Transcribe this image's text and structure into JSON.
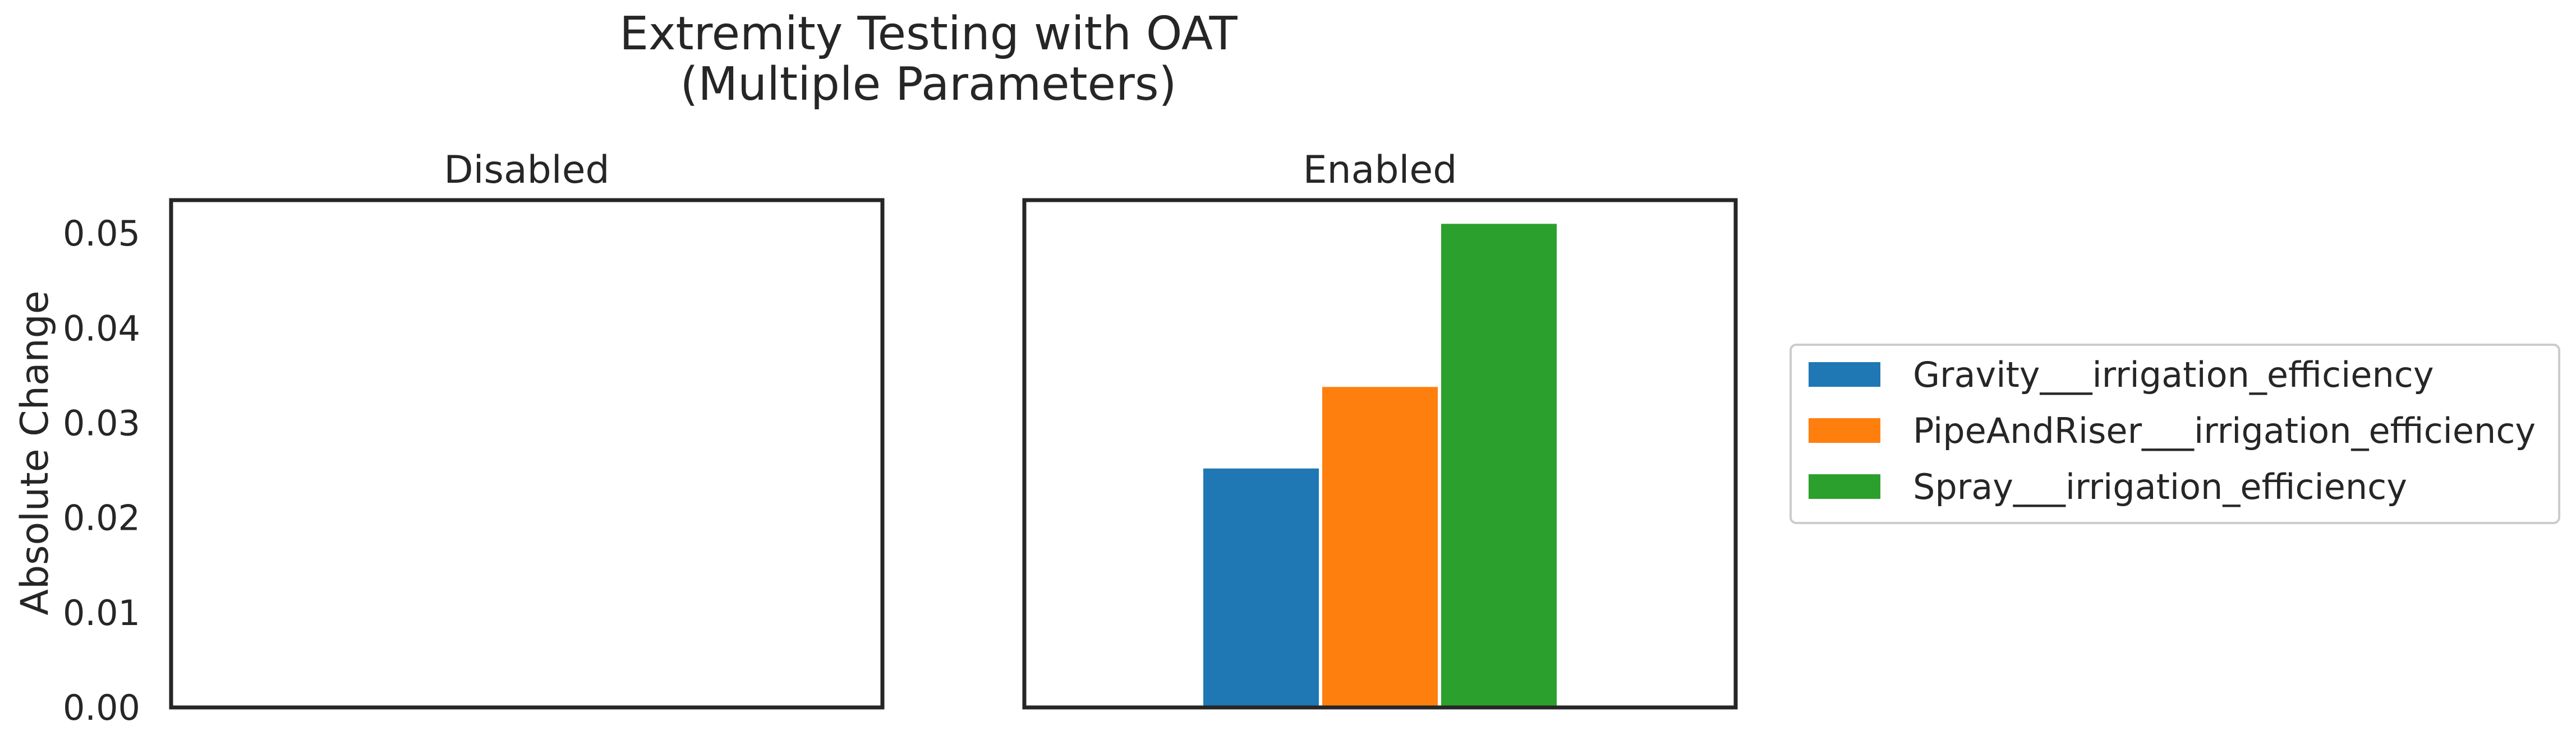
{
  "chart_data": {
    "type": "bar",
    "title": "Extremity Testing with OAT\n(Multiple Parameters)",
    "title_lines": [
      "Extremity Testing with OAT",
      "(Multiple Parameters)"
    ],
    "ylabel": "Absolute Change",
    "ylim": [
      0,
      0.0535
    ],
    "yticks": [
      0.0,
      0.01,
      0.02,
      0.03,
      0.04,
      0.05
    ],
    "ytick_labels": [
      "0.00",
      "0.01",
      "0.02",
      "0.03",
      "0.04",
      "0.05"
    ],
    "grid": false,
    "legend_position": "right",
    "series": [
      {
        "name": "Gravity___irrigation_efficiency",
        "color": "#1f77b4"
      },
      {
        "name": "PipeAndRiser___irrigation_efficiency",
        "color": "#ff7f0e"
      },
      {
        "name": "Spray___irrigation_efficiency",
        "color": "#2ca02c"
      }
    ],
    "panels": [
      {
        "title": "Disabled",
        "values": []
      },
      {
        "title": "Enabled",
        "values": [
          0.0252,
          0.0338,
          0.051
        ]
      }
    ]
  }
}
